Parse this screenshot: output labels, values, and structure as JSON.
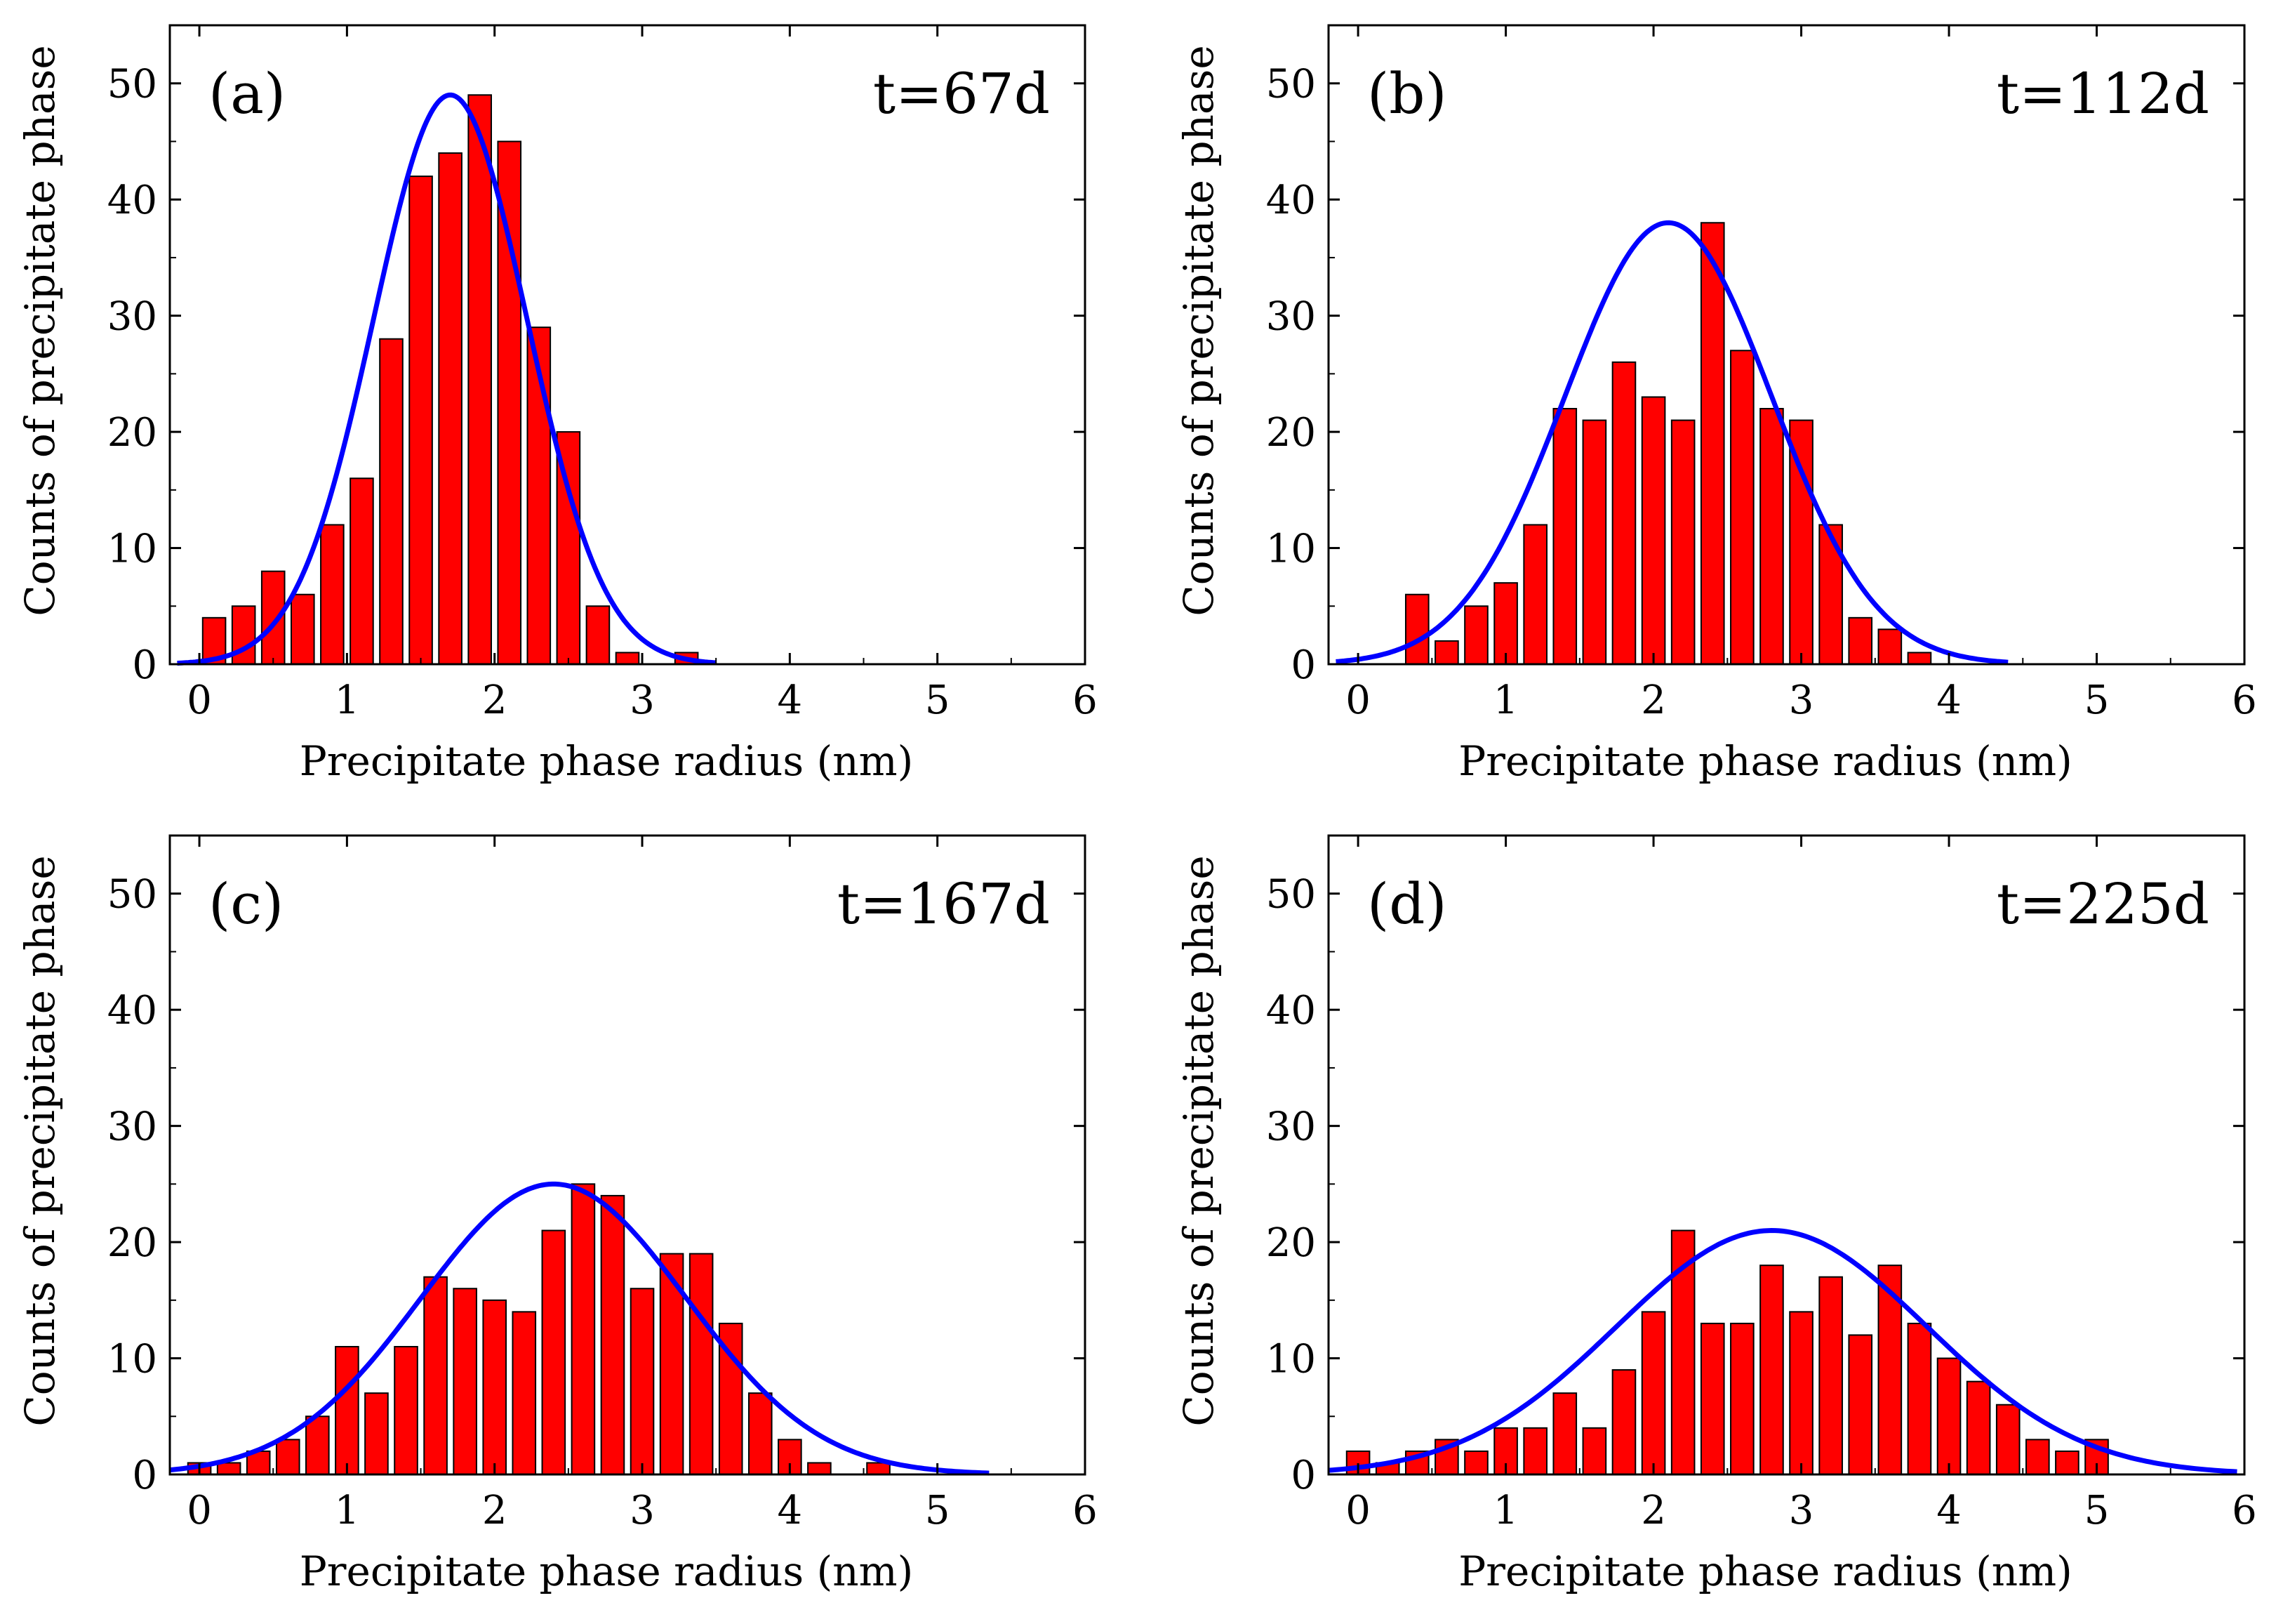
{
  "figure": {
    "xlabel": "Precipitate phase radius (nm)",
    "ylabel": "Counts of precipitate phase"
  },
  "chart_data": [
    {
      "type": "bar",
      "panel_label": "(a)",
      "time_label": "t=67d",
      "xlabel": "Precipitate phase radius (nm)",
      "ylabel": "Counts of precipitate phase",
      "xlim": [
        -0.2,
        6
      ],
      "ylim": [
        0,
        55
      ],
      "xticks": [
        0,
        1,
        2,
        3,
        4,
        5,
        6
      ],
      "yticks": [
        0,
        10,
        20,
        30,
        40,
        50
      ],
      "grid": false,
      "series": [
        {
          "x": [
            0.1,
            0.3,
            0.5,
            0.7,
            0.9,
            1.1,
            1.3,
            1.5,
            1.7,
            1.9,
            2.1,
            2.3,
            2.5,
            2.7,
            2.9,
            3.3
          ],
          "values": [
            4,
            5,
            8,
            6,
            12,
            16,
            28,
            42,
            44,
            49,
            45,
            29,
            20,
            5,
            1,
            1
          ],
          "color": "#ff0000"
        }
      ],
      "fit": {
        "type": "gaussian",
        "amplitude": 49,
        "center": 1.7,
        "sigma": 0.52,
        "range": [
          -0.15,
          3.5
        ],
        "color": "#0000ff"
      }
    },
    {
      "type": "bar",
      "panel_label": "(b)",
      "time_label": "t=112d",
      "xlabel": "Precipitate phase radius (nm)",
      "ylabel": "Counts of precipitate phase",
      "xlim": [
        -0.2,
        6
      ],
      "ylim": [
        0,
        55
      ],
      "xticks": [
        0,
        1,
        2,
        3,
        4,
        5,
        6
      ],
      "yticks": [
        0,
        10,
        20,
        30,
        40,
        50
      ],
      "grid": false,
      "series": [
        {
          "x": [
            0.4,
            0.6,
            0.8,
            1.0,
            1.2,
            1.4,
            1.6,
            1.8,
            2.0,
            2.2,
            2.4,
            2.6,
            2.8,
            3.0,
            3.2,
            3.4,
            3.6,
            3.8
          ],
          "values": [
            6,
            2,
            5,
            7,
            12,
            22,
            21,
            26,
            23,
            21,
            38,
            27,
            22,
            21,
            12,
            4,
            3,
            1
          ],
          "color": "#ff0000"
        }
      ],
      "fit": {
        "type": "gaussian",
        "amplitude": 38,
        "center": 2.1,
        "sigma": 0.7,
        "range": [
          -0.15,
          4.4
        ],
        "color": "#0000ff"
      }
    },
    {
      "type": "bar",
      "panel_label": "(c)",
      "time_label": "t=167d",
      "xlabel": "Precipitate phase radius (nm)",
      "ylabel": "Counts of precipitate phase",
      "xlim": [
        -0.2,
        6
      ],
      "ylim": [
        0,
        55
      ],
      "xticks": [
        0,
        1,
        2,
        3,
        4,
        5,
        6
      ],
      "yticks": [
        0,
        10,
        20,
        30,
        40,
        50
      ],
      "grid": false,
      "series": [
        {
          "x": [
            0.0,
            0.2,
            0.4,
            0.6,
            0.8,
            1.0,
            1.2,
            1.4,
            1.6,
            1.8,
            2.0,
            2.2,
            2.4,
            2.6,
            2.8,
            3.0,
            3.2,
            3.4,
            3.6,
            3.8,
            4.0,
            4.2,
            4.6
          ],
          "values": [
            1,
            1,
            2,
            3,
            5,
            11,
            7,
            11,
            17,
            16,
            15,
            14,
            21,
            25,
            24,
            16,
            19,
            19,
            13,
            7,
            3,
            1,
            1
          ],
          "color": "#ff0000"
        }
      ],
      "fit": {
        "type": "gaussian",
        "amplitude": 25,
        "center": 2.4,
        "sigma": 0.9,
        "range": [
          -0.2,
          5.35
        ],
        "color": "#0000ff"
      }
    },
    {
      "type": "bar",
      "panel_label": "(d)",
      "time_label": "t=225d",
      "xlabel": "Precipitate phase radius (nm)",
      "ylabel": "Counts of precipitate phase",
      "xlim": [
        -0.2,
        6
      ],
      "ylim": [
        0,
        55
      ],
      "xticks": [
        0,
        1,
        2,
        3,
        4,
        5,
        6
      ],
      "yticks": [
        0,
        10,
        20,
        30,
        40,
        50
      ],
      "grid": false,
      "series": [
        {
          "x": [
            0.0,
            0.2,
            0.4,
            0.6,
            0.8,
            1.0,
            1.2,
            1.4,
            1.6,
            1.8,
            2.0,
            2.2,
            2.4,
            2.6,
            2.8,
            3.0,
            3.2,
            3.4,
            3.6,
            3.8,
            4.0,
            4.2,
            4.4,
            4.6,
            4.8,
            5.0
          ],
          "values": [
            2,
            1,
            2,
            3,
            2,
            4,
            4,
            7,
            4,
            9,
            14,
            21,
            13,
            13,
            18,
            14,
            17,
            12,
            18,
            13,
            10,
            8,
            6,
            3,
            2,
            3
          ],
          "color": "#ff0000"
        }
      ],
      "fit": {
        "type": "gaussian",
        "amplitude": 21,
        "center": 2.8,
        "sigma": 1.05,
        "range": [
          -0.2,
          5.95
        ],
        "color": "#0000ff"
      }
    }
  ]
}
